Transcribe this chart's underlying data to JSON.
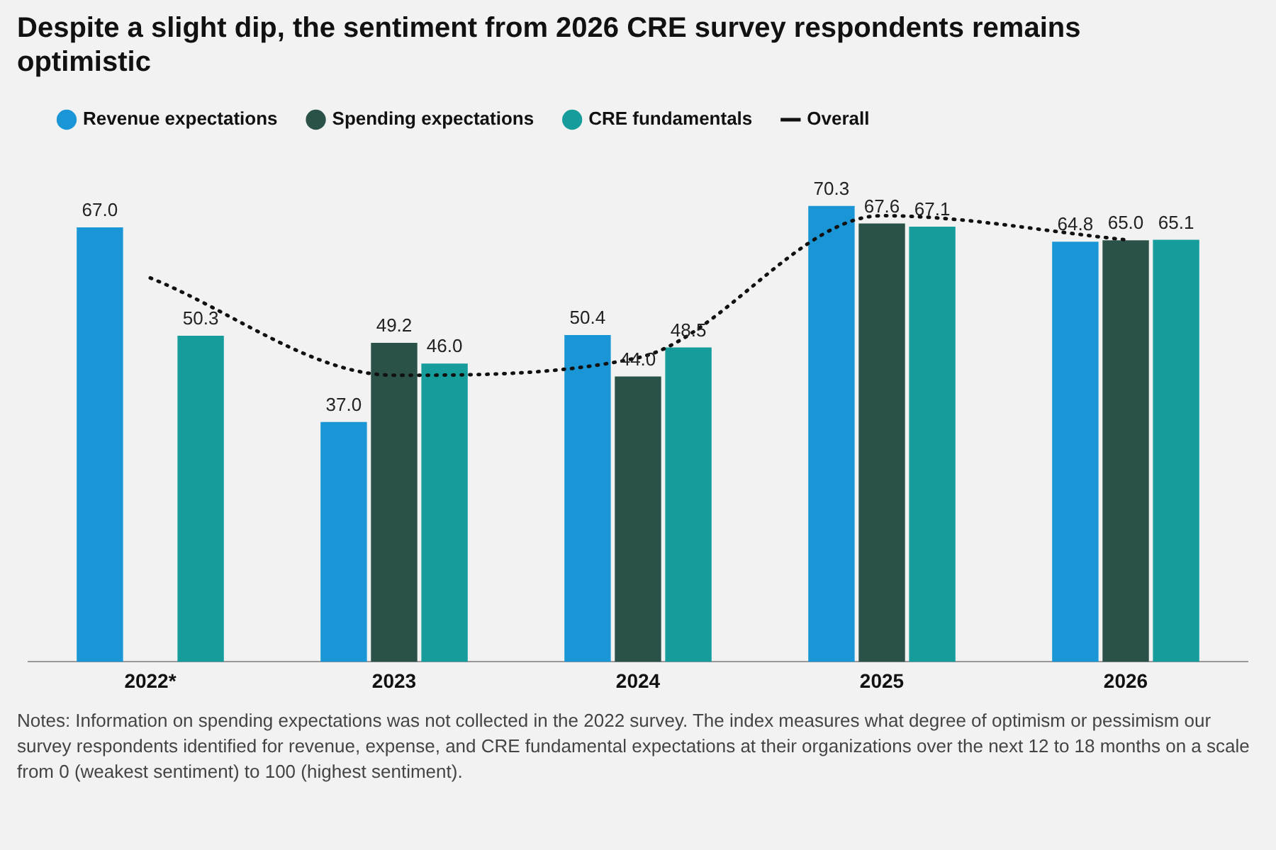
{
  "chart_data": {
    "type": "bar",
    "title": "Despite a slight dip, the sentiment from 2026 CRE survey respondents remains optimistic",
    "categories": [
      "2022*",
      "2023",
      "2024",
      "2025",
      "2026"
    ],
    "series": [
      {
        "name": "Revenue expectations",
        "color": "#1a96d6",
        "values": [
          67.0,
          37.0,
          50.4,
          70.3,
          64.8
        ],
        "value_labels": [
          "67.0",
          "37.0",
          "50.4",
          "70.3",
          "64.8"
        ]
      },
      {
        "name": "Spending expectations",
        "color": "#2b5248",
        "values": [
          null,
          49.2,
          44.0,
          67.6,
          65.0
        ],
        "value_labels": [
          null,
          "49.2",
          "44.0",
          "67.6",
          "65.0"
        ]
      },
      {
        "name": "CRE fundamentals",
        "color": "#179c9c",
        "values": [
          50.3,
          46.0,
          48.5,
          67.1,
          65.1
        ],
        "value_labels": [
          "50.3",
          "46.0",
          "48.5",
          "67.1",
          "65.1"
        ]
      },
      {
        "name": "Overall",
        "type": "line",
        "color": "#111111",
        "line_style": "dotted",
        "marker": "none",
        "values": [
          59.2,
          44.2,
          46.9,
          68.8,
          65.1
        ]
      }
    ],
    "tick_labels": "x",
    "grid": false,
    "legend": "top left",
    "annotations": [
      "Notes: Information on spending expectations was not collected in the 2022 survey. The index measures what degree of optimism or pessimism our survey respondents identified for revenue, expense, and CRE fundamental expectations at their organizations over the next 12 to 18 months on a scale from 0 (weakest sentiment) to 100 (highest sentiment)."
    ]
  }
}
